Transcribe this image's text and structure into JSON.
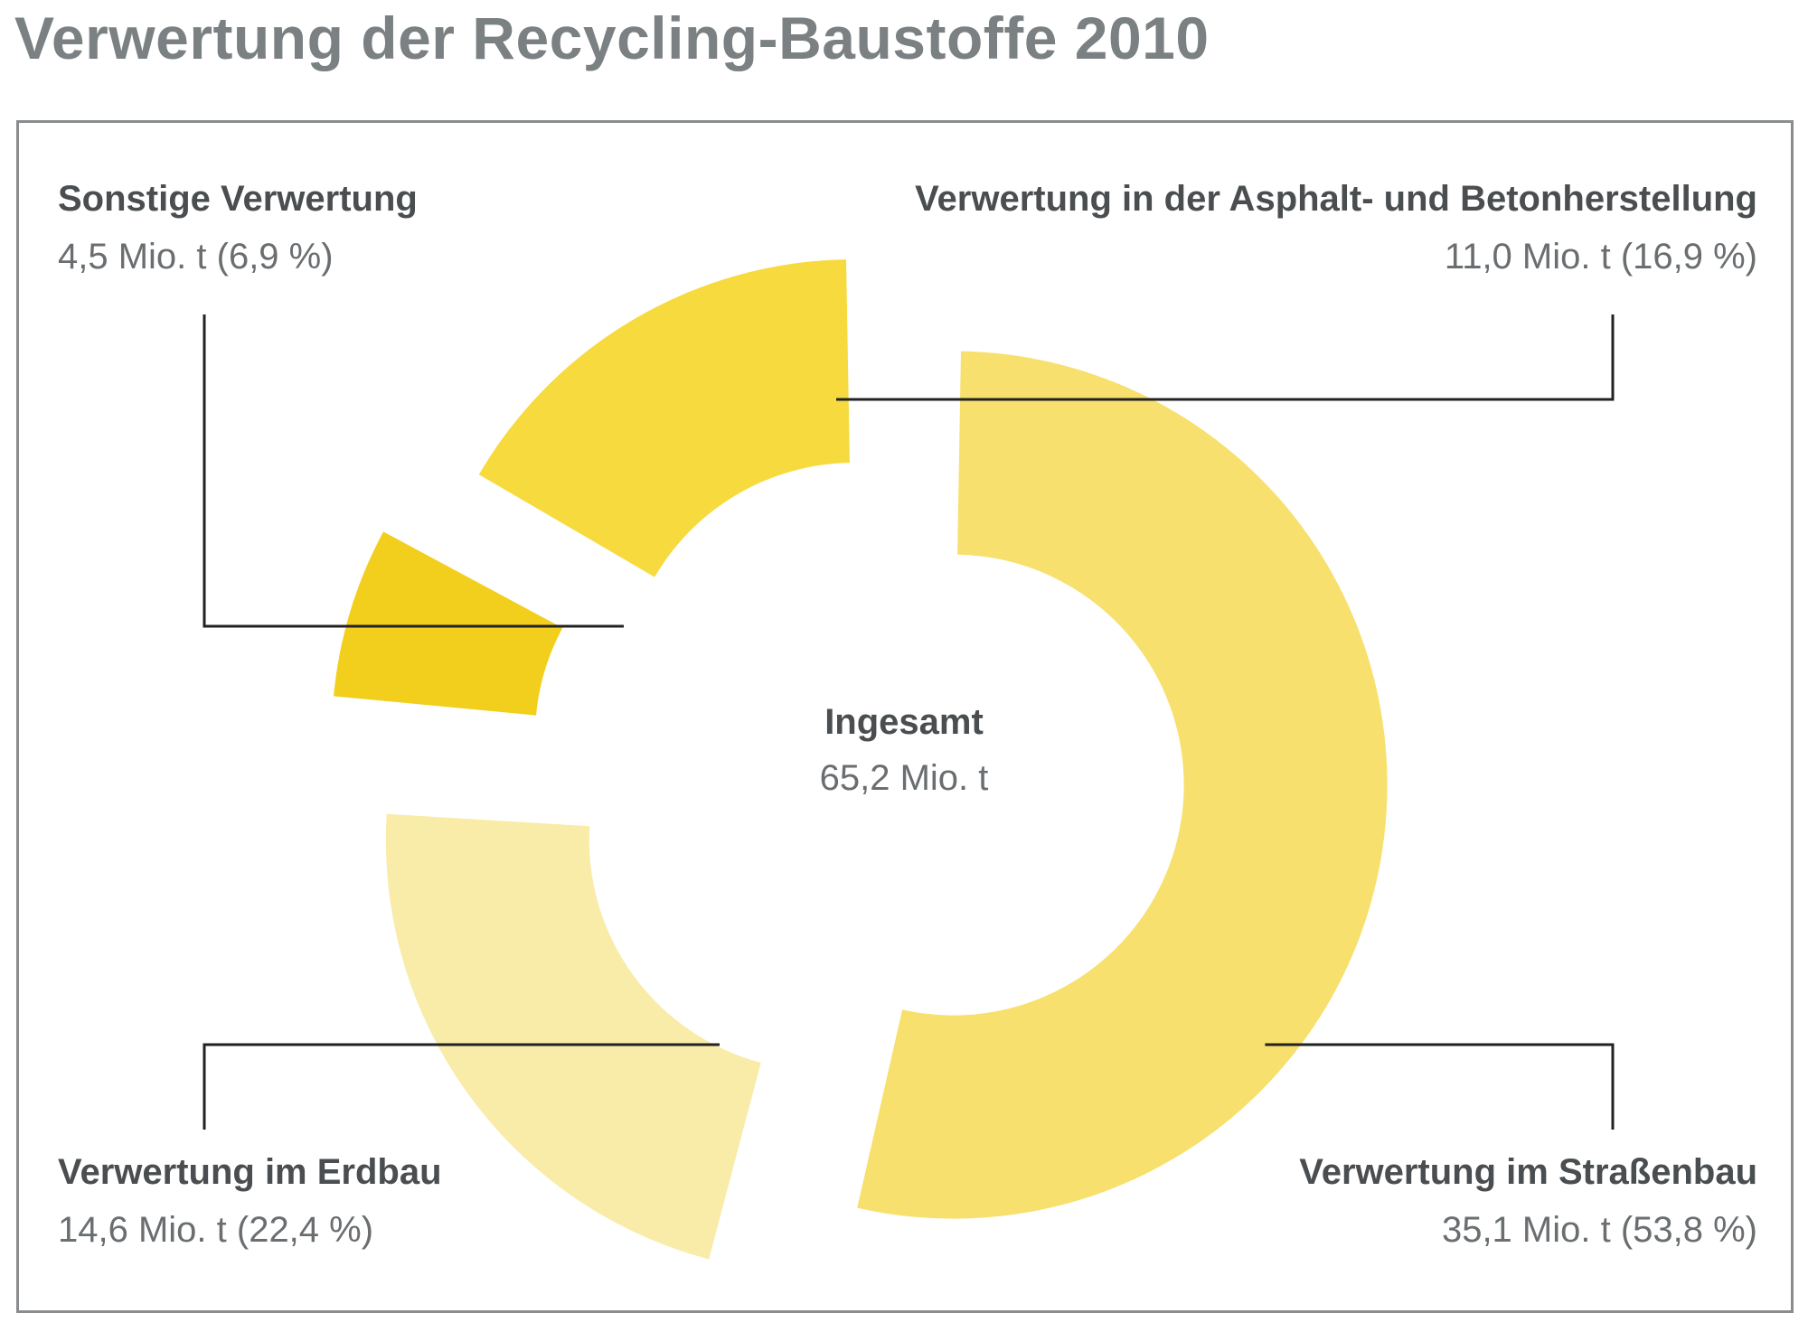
{
  "title": "Verwertung der Recycling-Baustoffe 2010",
  "chart_data": {
    "type": "pie",
    "style": "donut (exploded segments)",
    "title": "Verwertung der Recycling-Baustoffe 2010",
    "total": {
      "label": "Ingesamt",
      "value": 65.2,
      "display": "65,2 Mio. t"
    },
    "unit": "Mio. t",
    "slices": [
      {
        "name": "Verwertung im Straßenbau",
        "value": 35.1,
        "percent": 53.8,
        "value_label": "35,1 Mio. t (53,8 %)",
        "color": "#f8e06e"
      },
      {
        "name": "Verwertung im Erdbau",
        "value": 14.6,
        "percent": 22.4,
        "value_label": "14,6 Mio. t (22,4 %)",
        "color": "#f9eba8"
      },
      {
        "name": "Sonstige Verwertung",
        "value": 4.5,
        "percent": 6.9,
        "value_label": "4,5 Mio. t (6,9 %)",
        "color": "#f2cf1c"
      },
      {
        "name": "Verwertung in der Asphalt- und Betonherstellung",
        "value": 11.0,
        "percent": 16.9,
        "value_label": "11,0 Mio. t (16,9 %)",
        "color": "#f7da3e"
      }
    ],
    "legend": "callouts at four corners"
  },
  "colors": {
    "title": "#7b8082",
    "frame": "#8a8d8f",
    "leader": "#222222",
    "text_dark": "#4a4e50",
    "text_value": "#6a6e70"
  }
}
